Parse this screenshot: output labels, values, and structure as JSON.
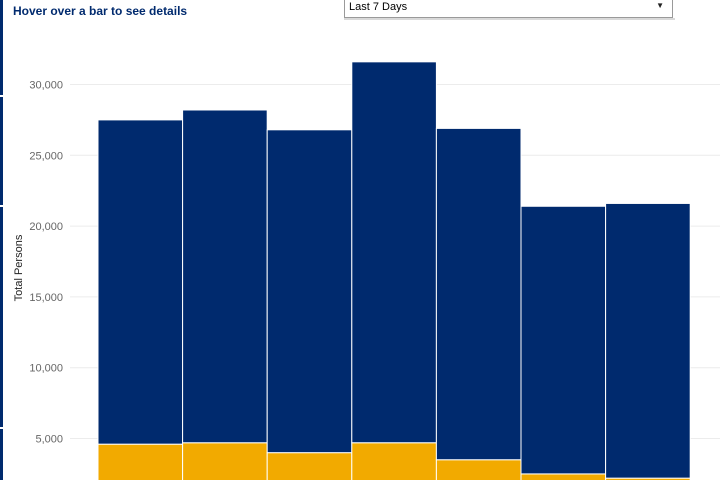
{
  "header": {
    "hint": "Hover over a bar to see details"
  },
  "filter": {
    "selected": "Last 7 Days"
  },
  "chart_data": {
    "type": "bar",
    "stacked": true,
    "ylabel": "Total Persons",
    "yticks": [
      "5,000",
      "10,000",
      "15,000",
      "20,000",
      "25,000",
      "30,000"
    ],
    "ytick_values": [
      5000,
      10000,
      15000,
      20000,
      25000,
      30000
    ],
    "ylim": [
      1000,
      33000
    ],
    "grid": true,
    "series": [
      {
        "name": "",
        "color": "#f2aa00",
        "values": [
          4600,
          4700,
          4000,
          4700,
          3500,
          2500,
          2200
        ]
      },
      {
        "name": "",
        "color": "#002a6e",
        "values": [
          22900,
          23500,
          22800,
          26900,
          23400,
          18900,
          19400
        ]
      }
    ]
  }
}
